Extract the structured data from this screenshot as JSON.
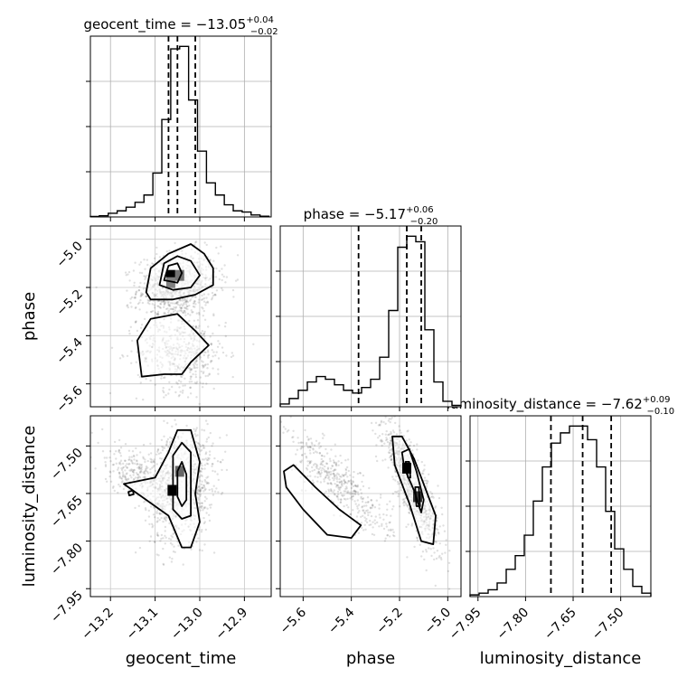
{
  "chart_data": {
    "type": "corner",
    "parameters": [
      "geocent_time",
      "phase",
      "luminosity_distance"
    ],
    "titles": [
      {
        "param": "geocent_time",
        "prefix": "geocent_time = ",
        "median": "−13.05",
        "plus": "+0.04",
        "minus": "−0.02"
      },
      {
        "param": "phase",
        "prefix": "phase = ",
        "median": "−5.17",
        "plus": "+0.06",
        "minus": "−0.20"
      },
      {
        "param": "luminosity_distance",
        "prefix": "luminosity_distance = ",
        "median": "−7.62",
        "plus": "+0.09",
        "minus": "−0.10"
      }
    ],
    "ranges": {
      "geocent_time": [
        -13.245,
        -12.84
      ],
      "phase": [
        -5.695,
        -4.945
      ],
      "luminosity_distance": [
        -7.975,
        -7.405
      ]
    },
    "ticks": {
      "geocent_time": {
        "values": [
          -13.2,
          -13.1,
          -13.0,
          -12.9
        ],
        "labels": [
          "−13.2",
          "−13.1",
          "−13.0",
          "−12.9"
        ]
      },
      "phase": {
        "values": [
          -5.6,
          -5.4,
          -5.2,
          -5.0
        ],
        "labels": [
          "−5.6",
          "−5.4",
          "−5.2",
          "−5.0"
        ]
      },
      "luminosity_distance": {
        "values": [
          -7.95,
          -7.8,
          -7.65,
          -7.5
        ],
        "labels": [
          "−7.95",
          "−7.80",
          "−7.65",
          "−7.50"
        ]
      }
    },
    "histograms": {
      "geocent_time": {
        "edges_start": -13.245,
        "bin_width": 0.02,
        "counts": [
          0.2,
          0.5,
          1.5,
          2.5,
          4,
          6,
          9,
          18,
          40,
          69,
          70,
          48,
          27,
          14,
          9,
          5,
          2.5,
          2,
          0.8,
          0.3
        ]
      },
      "phase": {
        "edges_start": -5.695,
        "bin_width": 0.0375,
        "counts": [
          1,
          3,
          6,
          9,
          11,
          10,
          8,
          6,
          5,
          7,
          10,
          18,
          35,
          58,
          62,
          60,
          28,
          9,
          2,
          0.5
        ]
      },
      "luminosity_distance": {
        "edges_start": -7.975,
        "bin_width": 0.0285,
        "counts": [
          0.5,
          1,
          2,
          4,
          8,
          12,
          18,
          28,
          38,
          45,
          48,
          50,
          50,
          46,
          38,
          25,
          14,
          8,
          3,
          1
        ]
      }
    },
    "quantiles": {
      "geocent_time": [
        -13.07,
        -13.05,
        -13.01
      ],
      "phase": [
        -5.37,
        -5.17,
        -5.11
      ],
      "luminosity_distance": [
        -7.72,
        -7.62,
        -7.53
      ]
    },
    "scatter_clusters": [
      {
        "pair": [
          "geocent_time",
          "phase"
        ],
        "center": [
          -13.05,
          -5.19
        ],
        "sd": [
          0.045,
          0.07
        ],
        "rho": 0.15,
        "n": 900
      },
      {
        "pair": [
          "geocent_time",
          "phase"
        ],
        "center": [
          -13.04,
          -5.47
        ],
        "sd": [
          0.05,
          0.08
        ],
        "rho": 0.0,
        "n": 500
      },
      {
        "pair": [
          "geocent_time",
          "luminosity_distance"
        ],
        "center": [
          -13.04,
          -7.62
        ],
        "sd": [
          0.035,
          0.09
        ],
        "rho": 0.2,
        "n": 1000
      },
      {
        "pair": [
          "geocent_time",
          "luminosity_distance"
        ],
        "center": [
          -13.14,
          -7.59
        ],
        "sd": [
          0.05,
          0.05
        ],
        "rho": -0.6,
        "n": 300
      },
      {
        "pair": [
          "phase",
          "luminosity_distance"
        ],
        "center": [
          -5.15,
          -7.62
        ],
        "sd": [
          0.06,
          0.1
        ],
        "rho": -0.85,
        "n": 900
      },
      {
        "pair": [
          "phase",
          "luminosity_distance"
        ],
        "center": [
          -5.45,
          -7.62
        ],
        "sd": [
          0.11,
          0.08
        ],
        "rho": -0.85,
        "n": 450
      }
    ],
    "density_blocks": [
      {
        "pair": [
          "geocent_time",
          "phase"
        ],
        "x": -13.065,
        "y": -5.15,
        "level": 1.0
      },
      {
        "pair": [
          "geocent_time",
          "phase"
        ],
        "x": -13.045,
        "y": -5.15,
        "level": 0.55
      },
      {
        "pair": [
          "geocent_time",
          "phase"
        ],
        "x": -13.065,
        "y": -5.18,
        "level": 0.5
      },
      {
        "pair": [
          "geocent_time",
          "luminosity_distance"
        ],
        "x": -13.062,
        "y": -7.64,
        "level": 1.0
      },
      {
        "pair": [
          "geocent_time",
          "luminosity_distance"
        ],
        "x": -13.045,
        "y": -7.58,
        "level": 0.6
      },
      {
        "pair": [
          "phase",
          "luminosity_distance"
        ],
        "x": -5.17,
        "y": -7.57,
        "level": 1.0
      },
      {
        "pair": [
          "phase",
          "luminosity_distance"
        ],
        "x": -5.125,
        "y": -7.66,
        "level": 0.8
      }
    ],
    "contours": [
      {
        "pair": [
          "geocent_time",
          "phase"
        ],
        "points": [
          [
            -13.12,
            -5.22
          ],
          [
            -13.11,
            -5.12
          ],
          [
            -13.07,
            -5.06
          ],
          [
            -13.02,
            -5.02
          ],
          [
            -12.99,
            -5.06
          ],
          [
            -12.97,
            -5.12
          ],
          [
            -12.97,
            -5.19
          ],
          [
            -13.01,
            -5.23
          ],
          [
            -13.06,
            -5.25
          ],
          [
            -13.11,
            -5.25
          ]
        ]
      },
      {
        "pair": [
          "geocent_time",
          "phase"
        ],
        "points": [
          [
            -13.09,
            -5.19
          ],
          [
            -13.08,
            -5.1
          ],
          [
            -13.05,
            -5.07
          ],
          [
            -13.02,
            -5.09
          ],
          [
            -13.0,
            -5.15
          ],
          [
            -13.02,
            -5.2
          ],
          [
            -13.06,
            -5.21
          ]
        ]
      },
      {
        "pair": [
          "geocent_time",
          "phase"
        ],
        "points": [
          [
            -13.08,
            -5.17
          ],
          [
            -13.07,
            -5.11
          ],
          [
            -13.05,
            -5.1
          ],
          [
            -13.04,
            -5.14
          ],
          [
            -13.05,
            -5.18
          ]
        ]
      },
      {
        "pair": [
          "geocent_time",
          "phase"
        ],
        "points": [
          [
            -13.13,
            -5.57
          ],
          [
            -13.14,
            -5.42
          ],
          [
            -13.11,
            -5.33
          ],
          [
            -13.05,
            -5.31
          ],
          [
            -13.01,
            -5.38
          ],
          [
            -12.98,
            -5.44
          ],
          [
            -13.02,
            -5.51
          ],
          [
            -13.04,
            -5.56
          ],
          [
            -13.08,
            -5.56
          ]
        ]
      },
      {
        "pair": [
          "geocent_time",
          "luminosity_distance"
        ],
        "points": [
          [
            -13.07,
            -7.52
          ],
          [
            -13.05,
            -7.45
          ],
          [
            -13.02,
            -7.45
          ],
          [
            -13.0,
            -7.55
          ],
          [
            -13.01,
            -7.65
          ],
          [
            -13.0,
            -7.74
          ],
          [
            -13.02,
            -7.82
          ],
          [
            -13.04,
            -7.82
          ],
          [
            -13.07,
            -7.72
          ],
          [
            -13.14,
            -7.65
          ],
          [
            -13.17,
            -7.62
          ],
          [
            -13.1,
            -7.6
          ]
        ]
      },
      {
        "pair": [
          "geocent_time",
          "luminosity_distance"
        ],
        "points": [
          [
            -13.06,
            -7.53
          ],
          [
            -13.04,
            -7.49
          ],
          [
            -13.02,
            -7.52
          ],
          [
            -13.02,
            -7.64
          ],
          [
            -13.02,
            -7.72
          ],
          [
            -13.04,
            -7.73
          ],
          [
            -13.06,
            -7.7
          ]
        ]
      },
      {
        "pair": [
          "geocent_time",
          "luminosity_distance"
        ],
        "points": [
          [
            -13.05,
            -7.58
          ],
          [
            -13.04,
            -7.55
          ],
          [
            -13.03,
            -7.59
          ],
          [
            -13.03,
            -7.67
          ],
          [
            -13.04,
            -7.69
          ],
          [
            -13.05,
            -7.66
          ]
        ]
      },
      {
        "pair": [
          "geocent_time",
          "luminosity_distance"
        ],
        "points": [
          [
            -13.16,
            -7.645
          ],
          [
            -13.15,
            -7.64
          ],
          [
            -13.148,
            -7.652
          ],
          [
            -13.158,
            -7.656
          ]
        ]
      },
      {
        "pair": [
          "phase",
          "luminosity_distance"
        ],
        "points": [
          [
            -5.23,
            -7.47
          ],
          [
            -5.19,
            -7.47
          ],
          [
            -5.14,
            -7.54
          ],
          [
            -5.1,
            -7.62
          ],
          [
            -5.05,
            -7.72
          ],
          [
            -5.06,
            -7.81
          ],
          [
            -5.11,
            -7.8
          ],
          [
            -5.16,
            -7.68
          ],
          [
            -5.22,
            -7.56
          ]
        ]
      },
      {
        "pair": [
          "phase",
          "luminosity_distance"
        ],
        "points": [
          [
            -5.19,
            -7.52
          ],
          [
            -5.16,
            -7.51
          ],
          [
            -5.13,
            -7.58
          ],
          [
            -5.1,
            -7.67
          ],
          [
            -5.11,
            -7.71
          ],
          [
            -5.14,
            -7.64
          ],
          [
            -5.18,
            -7.57
          ]
        ]
      },
      {
        "pair": [
          "phase",
          "luminosity_distance"
        ],
        "points": [
          [
            -5.175,
            -7.55
          ],
          [
            -5.16,
            -7.55
          ],
          [
            -5.155,
            -7.6
          ],
          [
            -5.165,
            -7.6
          ]
        ]
      },
      {
        "pair": [
          "phase",
          "luminosity_distance"
        ],
        "points": [
          [
            -5.135,
            -7.63
          ],
          [
            -5.12,
            -7.63
          ],
          [
            -5.115,
            -7.69
          ],
          [
            -5.13,
            -7.69
          ]
        ]
      },
      {
        "pair": [
          "phase",
          "luminosity_distance"
        ],
        "points": [
          [
            -5.68,
            -7.58
          ],
          [
            -5.64,
            -7.56
          ],
          [
            -5.55,
            -7.63
          ],
          [
            -5.45,
            -7.7
          ],
          [
            -5.36,
            -7.75
          ],
          [
            -5.4,
            -7.79
          ],
          [
            -5.5,
            -7.78
          ],
          [
            -5.6,
            -7.7
          ],
          [
            -5.67,
            -7.63
          ]
        ]
      }
    ]
  }
}
